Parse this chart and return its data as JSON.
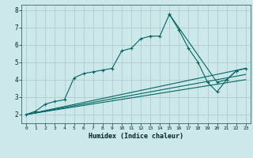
{
  "title": "",
  "xlabel": "Humidex (Indice chaleur)",
  "bg_color": "#cce8e8",
  "grid_color": "#b0cccc",
  "line_color": "#006666",
  "xlim": [
    -0.5,
    23.5
  ],
  "ylim": [
    1.5,
    8.3
  ],
  "xticks": [
    0,
    1,
    2,
    3,
    4,
    5,
    6,
    7,
    8,
    9,
    10,
    11,
    12,
    13,
    14,
    15,
    16,
    17,
    18,
    19,
    20,
    21,
    22,
    23
  ],
  "yticks": [
    2,
    3,
    4,
    5,
    6,
    7,
    8
  ],
  "line1_x": [
    0,
    1,
    2,
    3,
    4,
    5,
    6,
    7,
    8,
    9,
    10,
    11,
    12,
    13,
    14,
    15,
    16,
    17,
    18,
    19,
    20,
    21,
    22
  ],
  "line1_y": [
    2.0,
    2.2,
    2.6,
    2.75,
    2.85,
    4.1,
    4.35,
    4.45,
    4.55,
    4.65,
    5.65,
    5.8,
    6.35,
    6.5,
    6.5,
    7.75,
    6.85,
    5.8,
    5.0,
    3.85,
    3.3,
    4.0,
    4.5
  ],
  "line2_x": [
    0,
    23
  ],
  "line2_y": [
    2.0,
    4.65
  ],
  "line3_x": [
    0,
    23
  ],
  "line3_y": [
    2.0,
    4.3
  ],
  "line4_x": [
    0,
    23
  ],
  "line4_y": [
    2.0,
    4.0
  ],
  "line5_x": [
    15,
    20,
    21,
    22,
    23
  ],
  "line5_y": [
    7.75,
    3.85,
    4.0,
    4.5,
    4.65
  ]
}
